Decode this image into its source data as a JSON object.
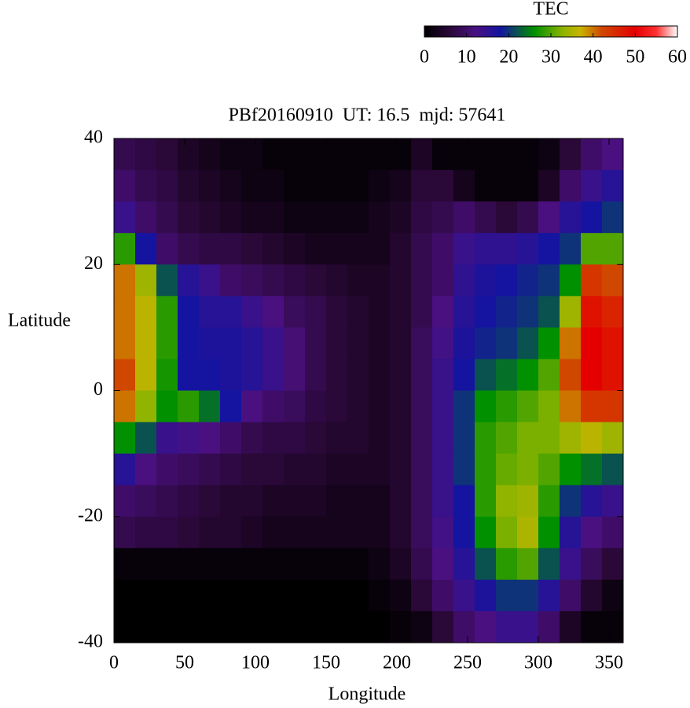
{
  "chart_data": {
    "type": "heatmap",
    "title": "PBf20160910  UT: 16.5  mjd: 57641",
    "xlabel": "Longitude",
    "ylabel": "Latitude",
    "xlim": [
      0,
      360
    ],
    "ylim": [
      -40,
      40
    ],
    "xticks": [
      0,
      50,
      100,
      150,
      200,
      250,
      300,
      350
    ],
    "yticks": [
      -40,
      -20,
      0,
      20,
      40
    ],
    "x": [
      7.5,
      22.5,
      37.5,
      52.5,
      67.5,
      82.5,
      97.5,
      112.5,
      127.5,
      142.5,
      157.5,
      172.5,
      187.5,
      202.5,
      217.5,
      232.5,
      247.5,
      262.5,
      277.5,
      292.5,
      307.5,
      322.5,
      337.5,
      352.5
    ],
    "y": [
      37.5,
      32.5,
      27.5,
      22.5,
      17.5,
      12.5,
      7.5,
      2.5,
      -2.5,
      -7.5,
      -12.5,
      -17.5,
      -22.5,
      -27.5,
      -32.5,
      -37.5
    ],
    "values": [
      [
        8,
        7,
        6,
        4,
        3,
        2,
        2,
        1,
        1,
        1,
        1,
        1,
        1,
        1,
        4,
        1,
        1,
        1,
        1,
        1,
        2,
        6,
        10,
        12
      ],
      [
        10,
        8,
        7,
        5,
        4,
        3,
        2,
        2,
        1,
        1,
        1,
        1,
        2,
        3,
        6,
        6,
        3,
        1,
        1,
        1,
        4,
        10,
        14,
        16
      ],
      [
        14,
        10,
        8,
        6,
        5,
        4,
        3,
        3,
        2,
        2,
        2,
        2,
        3,
        4,
        7,
        8,
        10,
        8,
        6,
        8,
        12,
        16,
        18,
        20
      ],
      [
        28,
        18,
        10,
        8,
        7,
        7,
        6,
        5,
        4,
        3,
        3,
        3,
        3,
        5,
        8,
        10,
        14,
        15,
        15,
        16,
        18,
        20,
        30,
        30
      ],
      [
        40,
        34,
        22,
        16,
        14,
        10,
        9,
        8,
        7,
        6,
        5,
        4,
        4,
        5,
        8,
        10,
        15,
        17,
        18,
        19,
        20,
        26,
        44,
        42
      ],
      [
        40,
        36,
        28,
        18,
        16,
        16,
        14,
        12,
        9,
        8,
        6,
        5,
        4,
        5,
        8,
        12,
        16,
        18,
        19,
        20,
        22,
        34,
        48,
        46
      ],
      [
        40,
        36,
        28,
        18,
        17,
        17,
        16,
        14,
        11,
        8,
        6,
        5,
        4,
        5,
        9,
        13,
        17,
        19,
        20,
        22,
        26,
        40,
        50,
        48
      ],
      [
        42,
        36,
        27,
        18,
        18,
        17,
        16,
        14,
        11,
        8,
        6,
        5,
        4,
        5,
        9,
        14,
        18,
        22,
        24,
        26,
        30,
        42,
        50,
        48
      ],
      [
        40,
        33,
        26,
        28,
        24,
        18,
        12,
        10,
        9,
        7,
        6,
        5,
        4,
        5,
        9,
        14,
        20,
        26,
        28,
        30,
        32,
        40,
        44,
        44
      ],
      [
        26,
        22,
        14,
        13,
        12,
        10,
        8,
        7,
        7,
        6,
        5,
        5,
        4,
        5,
        9,
        14,
        20,
        28,
        30,
        32,
        32,
        34,
        36,
        34
      ],
      [
        16,
        12,
        10,
        9,
        8,
        7,
        6,
        6,
        5,
        5,
        4,
        4,
        4,
        5,
        9,
        14,
        20,
        28,
        31,
        32,
        30,
        26,
        24,
        22
      ],
      [
        10,
        9,
        8,
        7,
        6,
        5,
        5,
        4,
        4,
        4,
        3,
        3,
        3,
        5,
        9,
        14,
        18,
        28,
        33,
        34,
        28,
        20,
        16,
        14
      ],
      [
        8,
        7,
        7,
        6,
        5,
        5,
        4,
        3,
        3,
        3,
        3,
        3,
        3,
        5,
        9,
        13,
        18,
        26,
        32,
        35,
        26,
        16,
        12,
        10
      ],
      [
        1,
        1,
        1,
        1,
        1,
        1,
        1,
        1,
        1,
        1,
        1,
        1,
        2,
        4,
        8,
        12,
        16,
        22,
        28,
        30,
        22,
        14,
        9,
        6
      ],
      [
        0,
        0,
        0,
        0,
        0,
        0,
        0,
        0,
        0,
        0,
        0,
        0,
        1,
        2,
        6,
        10,
        14,
        17,
        20,
        20,
        16,
        10,
        5,
        2
      ],
      [
        0,
        0,
        0,
        0,
        0,
        0,
        0,
        0,
        0,
        0,
        0,
        0,
        0,
        1,
        2,
        6,
        10,
        12,
        14,
        14,
        10,
        4,
        1,
        1
      ]
    ],
    "colorscale": [
      [
        0,
        "#000000"
      ],
      [
        6,
        "#2a0838"
      ],
      [
        12,
        "#4a1080"
      ],
      [
        18,
        "#1414a0"
      ],
      [
        26,
        "#009000"
      ],
      [
        33,
        "#90b400"
      ],
      [
        37,
        "#c8b400"
      ],
      [
        42,
        "#d04800"
      ],
      [
        50,
        "#e40000"
      ],
      [
        55,
        "#ff3030"
      ],
      [
        60,
        "#ffffff"
      ]
    ],
    "colorbar": {
      "label": "TEC",
      "lim": [
        0,
        60
      ],
      "ticks": [
        0,
        10,
        20,
        30,
        40,
        50,
        60
      ]
    }
  }
}
